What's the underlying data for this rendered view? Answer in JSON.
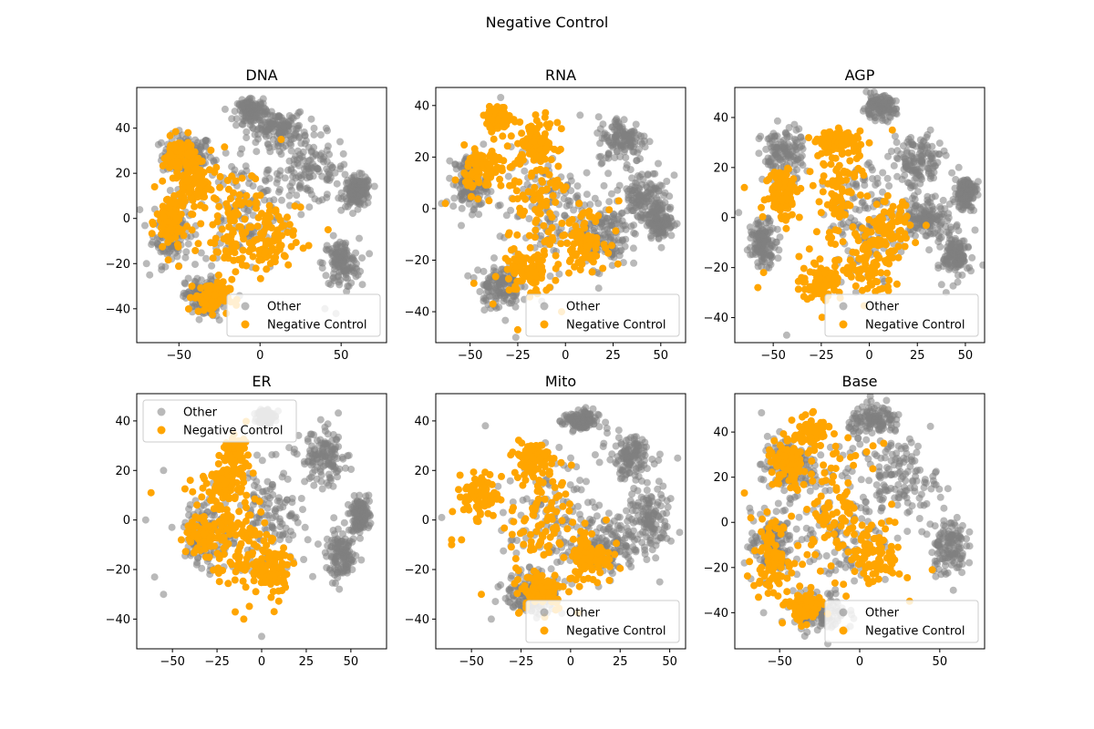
{
  "figure_title": "Negative Control",
  "legend_labels": [
    "Other",
    "Negative Control"
  ],
  "colors": {
    "other": "#808080",
    "negative": "#ffa500"
  },
  "chart_data": [
    {
      "type": "scatter",
      "title": "DNA",
      "xlim": [
        -76,
        78
      ],
      "ylim": [
        -55,
        58
      ],
      "xticks": [
        -50,
        0,
        50
      ],
      "yticks": [
        -40,
        -20,
        0,
        20,
        40
      ],
      "legend_loc": "lower-right",
      "series": [
        {
          "name": "Other",
          "clusters": [
            [
              -45,
              28,
              14,
              8
            ],
            [
              -55,
              -5,
              10,
              14
            ],
            [
              30,
              22,
              22,
              14
            ],
            [
              60,
              12,
              8,
              6
            ],
            [
              50,
              -20,
              10,
              10
            ],
            [
              -10,
              5,
              25,
              25
            ],
            [
              -35,
              -35,
              10,
              8
            ],
            [
              10,
              40,
              15,
              6
            ],
            [
              -5,
              48,
              8,
              4
            ]
          ],
          "outliers": [
            [
              -5,
              53
            ],
            [
              2,
              53
            ],
            [
              -70,
              -20
            ],
            [
              -68,
              -25
            ],
            [
              40,
              -40
            ],
            [
              -25,
              -45
            ]
          ]
        },
        {
          "name": "Negative Control",
          "clusters": [
            [
              -50,
              28,
              9,
              7
            ],
            [
              -55,
              -2,
              8,
              14
            ],
            [
              -18,
              0,
              15,
              22
            ],
            [
              -30,
              -35,
              10,
              6
            ],
            [
              5,
              -10,
              15,
              14
            ],
            [
              -40,
              15,
              8,
              10
            ]
          ],
          "outliers": [
            [
              13,
              35
            ],
            [
              25,
              5
            ],
            [
              42,
              -5
            ],
            [
              -65,
              14
            ],
            [
              -42,
              -30
            ],
            [
              30,
              -12
            ]
          ]
        }
      ]
    },
    {
      "type": "scatter",
      "title": "RNA",
      "xlim": [
        -68,
        63
      ],
      "ylim": [
        -52,
        47
      ],
      "xticks": [
        -50,
        -25,
        0,
        25,
        50
      ],
      "yticks": [
        -40,
        -20,
        0,
        20,
        40
      ],
      "legend_loc": "lower-right",
      "series": [
        {
          "name": "Other",
          "clusters": [
            [
              30,
              27,
              12,
              8
            ],
            [
              40,
              5,
              10,
              10
            ],
            [
              -50,
              10,
              8,
              10
            ],
            [
              -10,
              0,
              22,
              22
            ],
            [
              20,
              -10,
              12,
              12
            ],
            [
              50,
              -5,
              6,
              6
            ],
            [
              -35,
              -30,
              10,
              8
            ]
          ],
          "outliers": [
            [
              -26,
              -50
            ],
            [
              57,
              13
            ],
            [
              -65,
              2
            ],
            [
              -38,
              -37
            ]
          ]
        },
        {
          "name": "Negative Control",
          "clusters": [
            [
              -35,
              35,
              6,
              4
            ],
            [
              -42,
              15,
              10,
              8
            ],
            [
              -12,
              0,
              16,
              20
            ],
            [
              -20,
              -25,
              12,
              8
            ],
            [
              10,
              -12,
              10,
              10
            ],
            [
              -15,
              25,
              10,
              8
            ]
          ],
          "outliers": [
            [
              -48,
              -29
            ],
            [
              -38,
              -37
            ],
            [
              28,
              3
            ],
            [
              -63,
              2
            ],
            [
              -25,
              -47
            ],
            [
              -2,
              -40
            ]
          ]
        }
      ]
    },
    {
      "type": "scatter",
      "title": "AGP",
      "xlim": [
        -70,
        60
      ],
      "ylim": [
        -50,
        52
      ],
      "xticks": [
        -50,
        -25,
        0,
        25,
        50
      ],
      "yticks": [
        -40,
        -20,
        0,
        20,
        40
      ],
      "legend_loc": "lower-right",
      "series": [
        {
          "name": "Other",
          "clusters": [
            [
              25,
              22,
              12,
              10
            ],
            [
              45,
              -15,
              6,
              8
            ],
            [
              -45,
              25,
              10,
              10
            ],
            [
              -55,
              -10,
              6,
              8
            ],
            [
              0,
              0,
              20,
              20
            ],
            [
              30,
              0,
              10,
              8
            ],
            [
              50,
              10,
              5,
              6
            ],
            [
              5,
              44,
              8,
              4
            ]
          ],
          "outliers": [
            [
              -68,
              2
            ],
            [
              -62,
              -12
            ],
            [
              -43,
              -47
            ],
            [
              40,
              -30
            ],
            [
              55,
              -5
            ],
            [
              52,
              -20
            ]
          ]
        },
        {
          "name": "Negative Control",
          "clusters": [
            [
              -15,
              10,
              12,
              20
            ],
            [
              -45,
              10,
              8,
              10
            ],
            [
              -25,
              -25,
              10,
              8
            ],
            [
              0,
              -20,
              12,
              12
            ],
            [
              -15,
              30,
              10,
              4
            ],
            [
              10,
              -5,
              10,
              10
            ]
          ],
          "outliers": [
            [
              -55,
              -22
            ],
            [
              -58,
              -28
            ],
            [
              -25,
              2
            ],
            [
              24,
              -10
            ],
            [
              -65,
              12
            ],
            [
              12,
              35
            ]
          ]
        }
      ]
    },
    {
      "type": "scatter",
      "title": "ER",
      "xlim": [
        -70,
        70
      ],
      "ylim": [
        -52,
        51
      ],
      "xticks": [
        -50,
        -25,
        0,
        25,
        50
      ],
      "yticks": [
        -40,
        -20,
        0,
        20,
        40
      ],
      "legend_loc": "upper-left",
      "series": [
        {
          "name": "Other",
          "clusters": [
            [
              35,
              25,
              12,
              10
            ],
            [
              5,
              0,
              18,
              20
            ],
            [
              -30,
              -5,
              12,
              14
            ],
            [
              45,
              -15,
              8,
              8
            ],
            [
              55,
              2,
              5,
              6
            ],
            [
              2,
              42,
              4,
              3
            ]
          ],
          "outliers": [
            [
              -65,
              0
            ],
            [
              -60,
              -23
            ],
            [
              -55,
              -30
            ],
            [
              -55,
              20
            ],
            [
              0,
              -47
            ],
            [
              60,
              10
            ],
            [
              55,
              -5
            ]
          ]
        },
        {
          "name": "Negative Control",
          "clusters": [
            [
              -12,
              -10,
              15,
              18
            ],
            [
              -30,
              -5,
              10,
              10
            ],
            [
              -20,
              15,
              10,
              8
            ],
            [
              5,
              -20,
              10,
              10
            ],
            [
              -15,
              28,
              6,
              5
            ]
          ],
          "outliers": [
            [
              -62,
              11
            ],
            [
              -45,
              -8
            ],
            [
              -10,
              -40
            ],
            [
              7,
              -37
            ],
            [
              -40,
              16
            ]
          ]
        }
      ]
    },
    {
      "type": "scatter",
      "title": "Mito",
      "xlim": [
        -68,
        58
      ],
      "ylim": [
        -52,
        51
      ],
      "xticks": [
        -50,
        -25,
        0,
        25,
        50
      ],
      "yticks": [
        -40,
        -20,
        0,
        20,
        40
      ],
      "legend_loc": "lower-right",
      "series": [
        {
          "name": "Other",
          "clusters": [
            [
              30,
              25,
              10,
              8
            ],
            [
              -10,
              0,
              20,
              22
            ],
            [
              20,
              -10,
              12,
              12
            ],
            [
              -20,
              -30,
              12,
              8
            ],
            [
              40,
              0,
              10,
              12
            ],
            [
              5,
              40,
              8,
              4
            ]
          ],
          "outliers": [
            [
              -65,
              1
            ],
            [
              -43,
              38
            ],
            [
              55,
              -5
            ],
            [
              54,
              25
            ],
            [
              45,
              -25
            ],
            [
              -40,
              -40
            ]
          ]
        },
        {
          "name": "Negative Control",
          "clusters": [
            [
              -15,
              0,
              14,
              20
            ],
            [
              -45,
              10,
              8,
              8
            ],
            [
              -15,
              -28,
              12,
              8
            ],
            [
              10,
              -15,
              10,
              10
            ],
            [
              -20,
              25,
              8,
              6
            ]
          ],
          "outliers": [
            [
              -60,
              -10
            ],
            [
              -60,
              -8
            ],
            [
              18,
              0
            ],
            [
              -55,
              -8
            ],
            [
              -45,
              -30
            ]
          ]
        }
      ]
    },
    {
      "type": "scatter",
      "title": "Base",
      "xlim": [
        -78,
        78
      ],
      "ylim": [
        -56,
        57
      ],
      "xticks": [
        -50,
        0,
        50
      ],
      "yticks": [
        -40,
        -20,
        0,
        20,
        40
      ],
      "legend_loc": "lower-right",
      "series": [
        {
          "name": "Other",
          "clusters": [
            [
              25,
              20,
              22,
              15
            ],
            [
              -45,
              25,
              15,
              12
            ],
            [
              -55,
              -10,
              12,
              14
            ],
            [
              -10,
              0,
              28,
              28
            ],
            [
              55,
              -10,
              10,
              12
            ],
            [
              -25,
              -40,
              15,
              8
            ],
            [
              10,
              45,
              15,
              6
            ]
          ],
          "outliers": [
            [
              -72,
              -18
            ],
            [
              -68,
              -25
            ],
            [
              -60,
              -40
            ]
          ]
        },
        {
          "name": "Negative Control",
          "clusters": [
            [
              -45,
              25,
              12,
              10
            ],
            [
              -55,
              -15,
              10,
              14
            ],
            [
              -15,
              5,
              18,
              25
            ],
            [
              -35,
              -38,
              10,
              6
            ],
            [
              10,
              -15,
              15,
              12
            ],
            [
              -30,
              40,
              10,
              6
            ]
          ],
          "outliers": [
            [
              -72,
              13
            ],
            [
              -68,
              2
            ],
            [
              -66,
              -28
            ],
            [
              20,
              8
            ],
            [
              22,
              0
            ],
            [
              15,
              35
            ]
          ]
        }
      ]
    }
  ]
}
